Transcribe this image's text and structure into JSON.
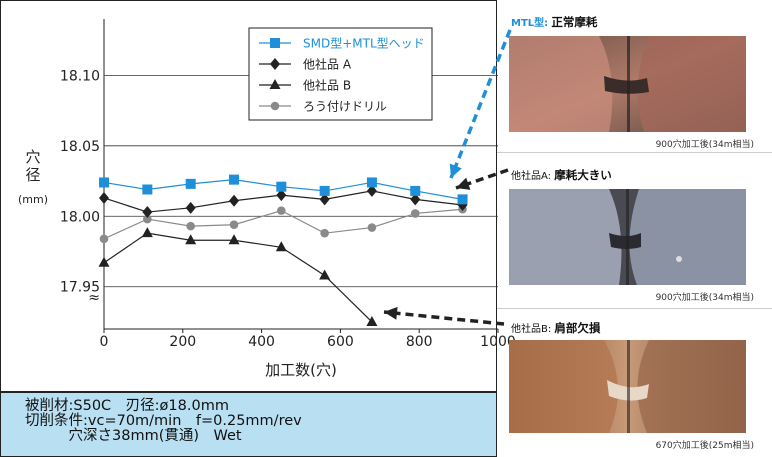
{
  "chart_data": {
    "type": "line",
    "x": [
      0,
      110,
      220,
      330,
      450,
      560,
      680,
      790,
      910
    ],
    "xlabel": "加工数(穴)",
    "ylabel": "穴径",
    "ylabel_unit": "(mm)",
    "xlim": [
      0,
      1000
    ],
    "ylim": [
      17.92,
      18.14
    ],
    "x_ticks": [
      "0",
      "200",
      "400",
      "600",
      "800",
      "1000"
    ],
    "y_ticks": [
      "17.95",
      "18.00",
      "18.05",
      "18.10"
    ],
    "axis_break_mark": "≈",
    "legend_position": "top-right",
    "series": [
      {
        "name": "SMD型+MTL型ヘッド",
        "marker": "square",
        "color": "#1e8fd8",
        "x": [
          0,
          110,
          220,
          330,
          450,
          560,
          680,
          790,
          910
        ],
        "values": [
          18.024,
          18.019,
          18.023,
          18.026,
          18.021,
          18.018,
          18.024,
          18.018,
          18.012
        ]
      },
      {
        "name": "他社品 A",
        "marker": "diamond",
        "color": "#222222",
        "x": [
          0,
          110,
          220,
          330,
          450,
          560,
          680,
          790,
          910
        ],
        "values": [
          18.013,
          18.003,
          18.006,
          18.011,
          18.015,
          18.012,
          18.018,
          18.012,
          18.008
        ]
      },
      {
        "name": "他社品 B",
        "marker": "triangle",
        "color": "#222222",
        "x": [
          0,
          110,
          220,
          330,
          450,
          560,
          680
        ],
        "values": [
          17.967,
          17.988,
          17.983,
          17.983,
          17.978,
          17.958,
          17.925
        ]
      },
      {
        "name": "ろう付けドリル",
        "marker": "circle",
        "color": "#8a8a8a",
        "x": [
          0,
          110,
          220,
          330,
          450,
          560,
          680,
          790,
          910
        ],
        "values": [
          17.984,
          17.998,
          17.993,
          17.994,
          18.004,
          17.988,
          17.992,
          18.002,
          18.005
        ]
      }
    ]
  },
  "conditions": {
    "line1": "被削材:S50C　刃径:ø18.0mm",
    "line2": "切削条件:vc=70m/min　f=0.25mm/rev",
    "line3": "　　　穴深さ38mm(貫通)　Wet"
  },
  "photos": [
    {
      "caption_prefix": "MTL型:",
      "caption_bold": "正常摩耗",
      "note": "900穴加工後(34m相当)",
      "prefix_color": "#1e8fd8"
    },
    {
      "caption_prefix": "他社品A:",
      "caption_bold": "摩耗大きい",
      "note": "900穴加工後(34m相当)",
      "prefix_color": "#111111"
    },
    {
      "caption_prefix": "他社品B:",
      "caption_bold": "肩部欠損",
      "note": "670穴加工後(25m相当)",
      "prefix_color": "#111111"
    }
  ]
}
